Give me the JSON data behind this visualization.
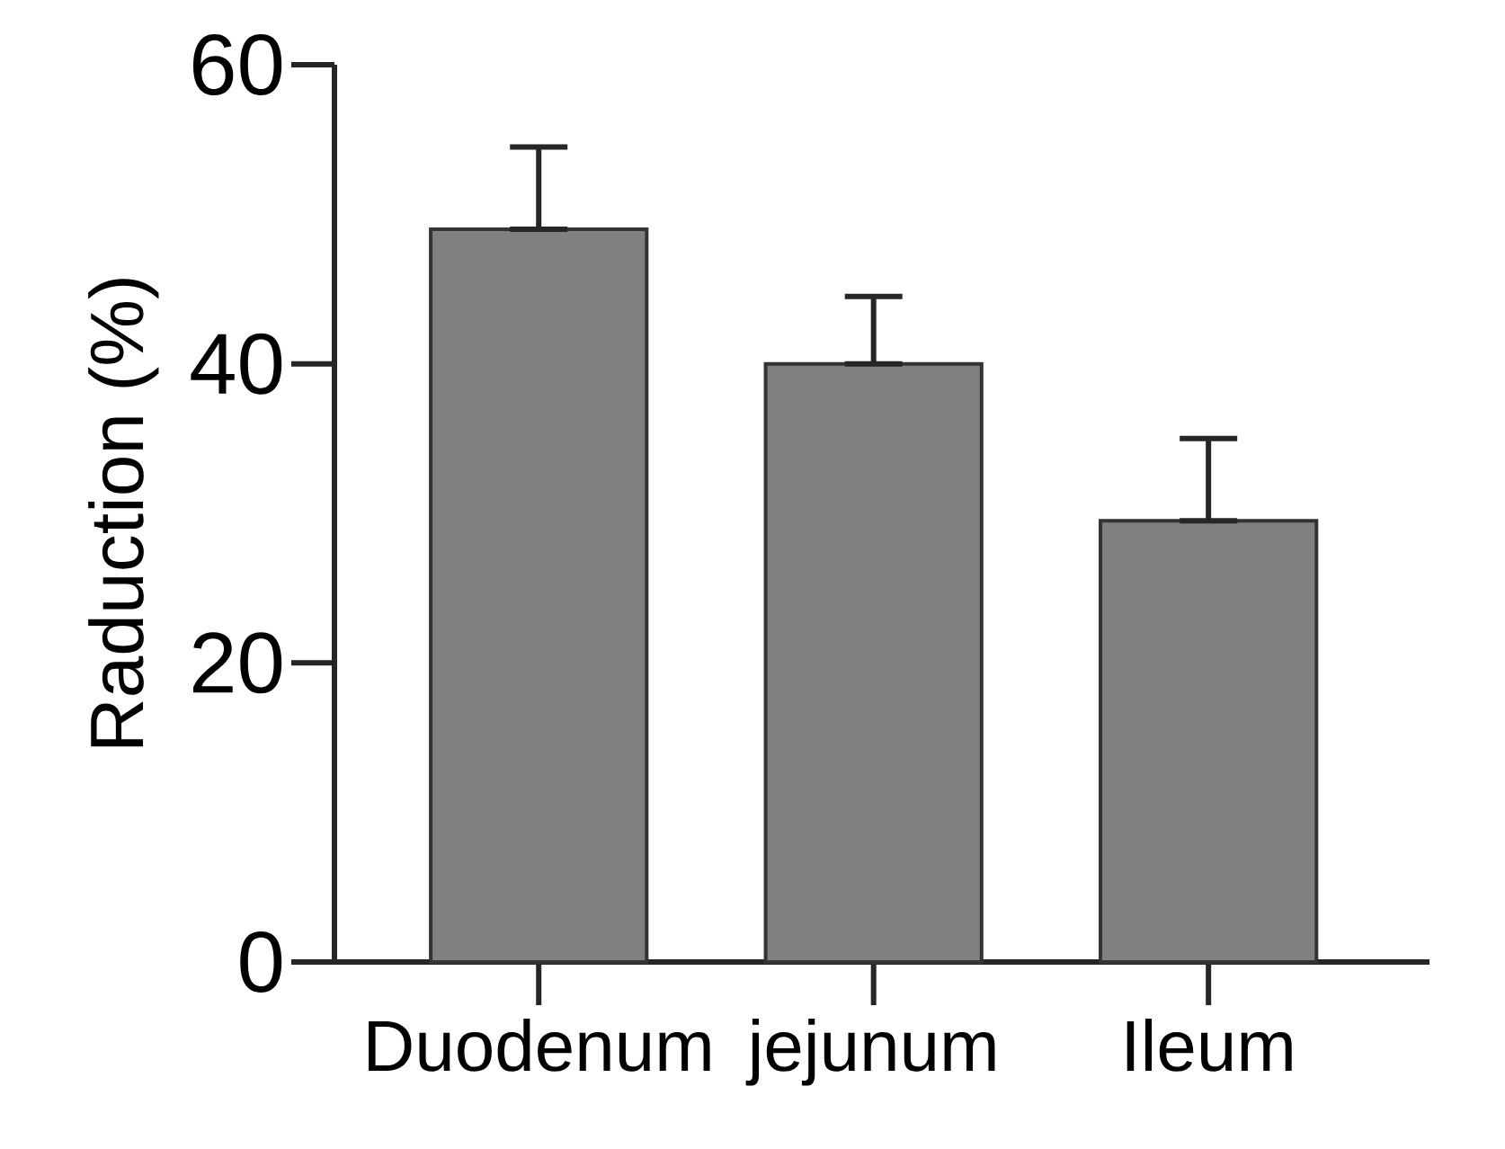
{
  "chart_data": {
    "type": "bar",
    "ylabel": "Raduction (%)",
    "categories": [
      "Duodenum",
      "jejunum",
      "Ileum"
    ],
    "values": [
      49,
      40,
      29.5
    ],
    "errors": [
      [
        49,
        54.5
      ],
      [
        40,
        44.5
      ],
      [
        29.5,
        35
      ]
    ],
    "color": "#808080",
    "ylim": [
      0,
      60
    ],
    "yticks": [
      0,
      20,
      40,
      60
    ]
  }
}
